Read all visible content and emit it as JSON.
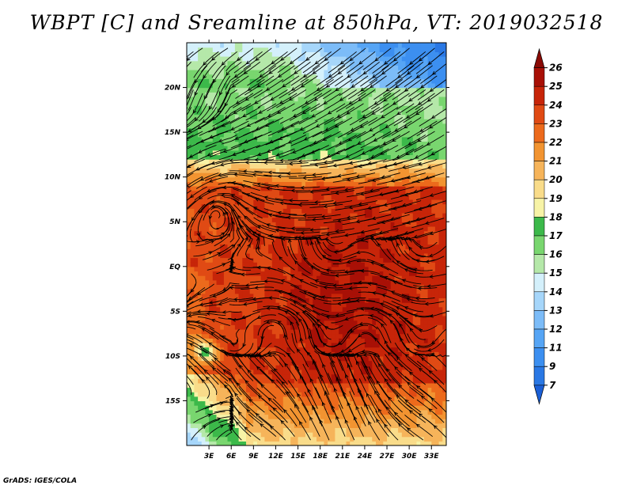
{
  "title": "WBPT [C] and Sreamline at 850hPa, VT: 2019032518",
  "footer": "GrADS: IGES/COLA",
  "chart_data": {
    "type": "heatmap",
    "variable": "WBPT [C]",
    "overlay": "Sreamline",
    "level": "850hPa",
    "valid_time": "2019032518",
    "x_tick_labels": [
      "3E",
      "6E",
      "9E",
      "12E",
      "15E",
      "18E",
      "21E",
      "24E",
      "27E",
      "30E",
      "33E"
    ],
    "x_ticks": [
      3,
      6,
      9,
      12,
      15,
      18,
      21,
      24,
      27,
      30,
      33
    ],
    "y_tick_labels": [
      "20N",
      "15N",
      "10N",
      "5N",
      "EQ",
      "5S",
      "10S",
      "15S"
    ],
    "y_ticks": [
      20,
      15,
      10,
      5,
      0,
      -5,
      -10,
      -15
    ],
    "xlim": [
      0,
      35
    ],
    "ylim": [
      -20,
      25
    ],
    "colorbar": {
      "levels": [
        7,
        9,
        11,
        12,
        13,
        14,
        15,
        16,
        17,
        18,
        19,
        20,
        21,
        22,
        23,
        24,
        25,
        26
      ],
      "level_labels": [
        "7",
        "9",
        "11",
        "12",
        "13",
        "14",
        "15",
        "16",
        "17",
        "18",
        "19",
        "20",
        "21",
        "22",
        "23",
        "24",
        "25",
        "26"
      ],
      "colors": [
        "#1a5fd6",
        "#2a78e4",
        "#3c8ff0",
        "#56a5f5",
        "#7cbcf8",
        "#a6d6fa",
        "#d4f0fb",
        "#b5e8a9",
        "#79d66f",
        "#3cb94a",
        "#f7f3a6",
        "#f9dc8a",
        "#f6b45a",
        "#f29431",
        "#ec6a1c",
        "#e04a14",
        "#c72509",
        "#a81006",
        "#8a0a05"
      ],
      "extend": "both"
    },
    "regions": [
      {
        "description": "blue cold air",
        "lat_range": [
          20,
          25
        ],
        "lon_range": [
          15,
          35
        ],
        "value_approx": 12
      },
      {
        "description": "green band",
        "lat_range": [
          12,
          20
        ],
        "lon_range": [
          0,
          35
        ],
        "value_approx": 16
      },
      {
        "description": "orange warm belt",
        "lat_range": [
          8,
          12
        ],
        "lon_range": [
          0,
          35
        ],
        "value_approx": 22
      },
      {
        "description": "deep red core",
        "lat_range": [
          -15,
          8
        ],
        "lon_range": [
          10,
          35
        ],
        "value_approx": 24
      },
      {
        "description": "cool southwest",
        "lat_range": [
          -20,
          -14
        ],
        "lon_range": [
          0,
          8
        ],
        "value_approx": 16
      }
    ]
  }
}
